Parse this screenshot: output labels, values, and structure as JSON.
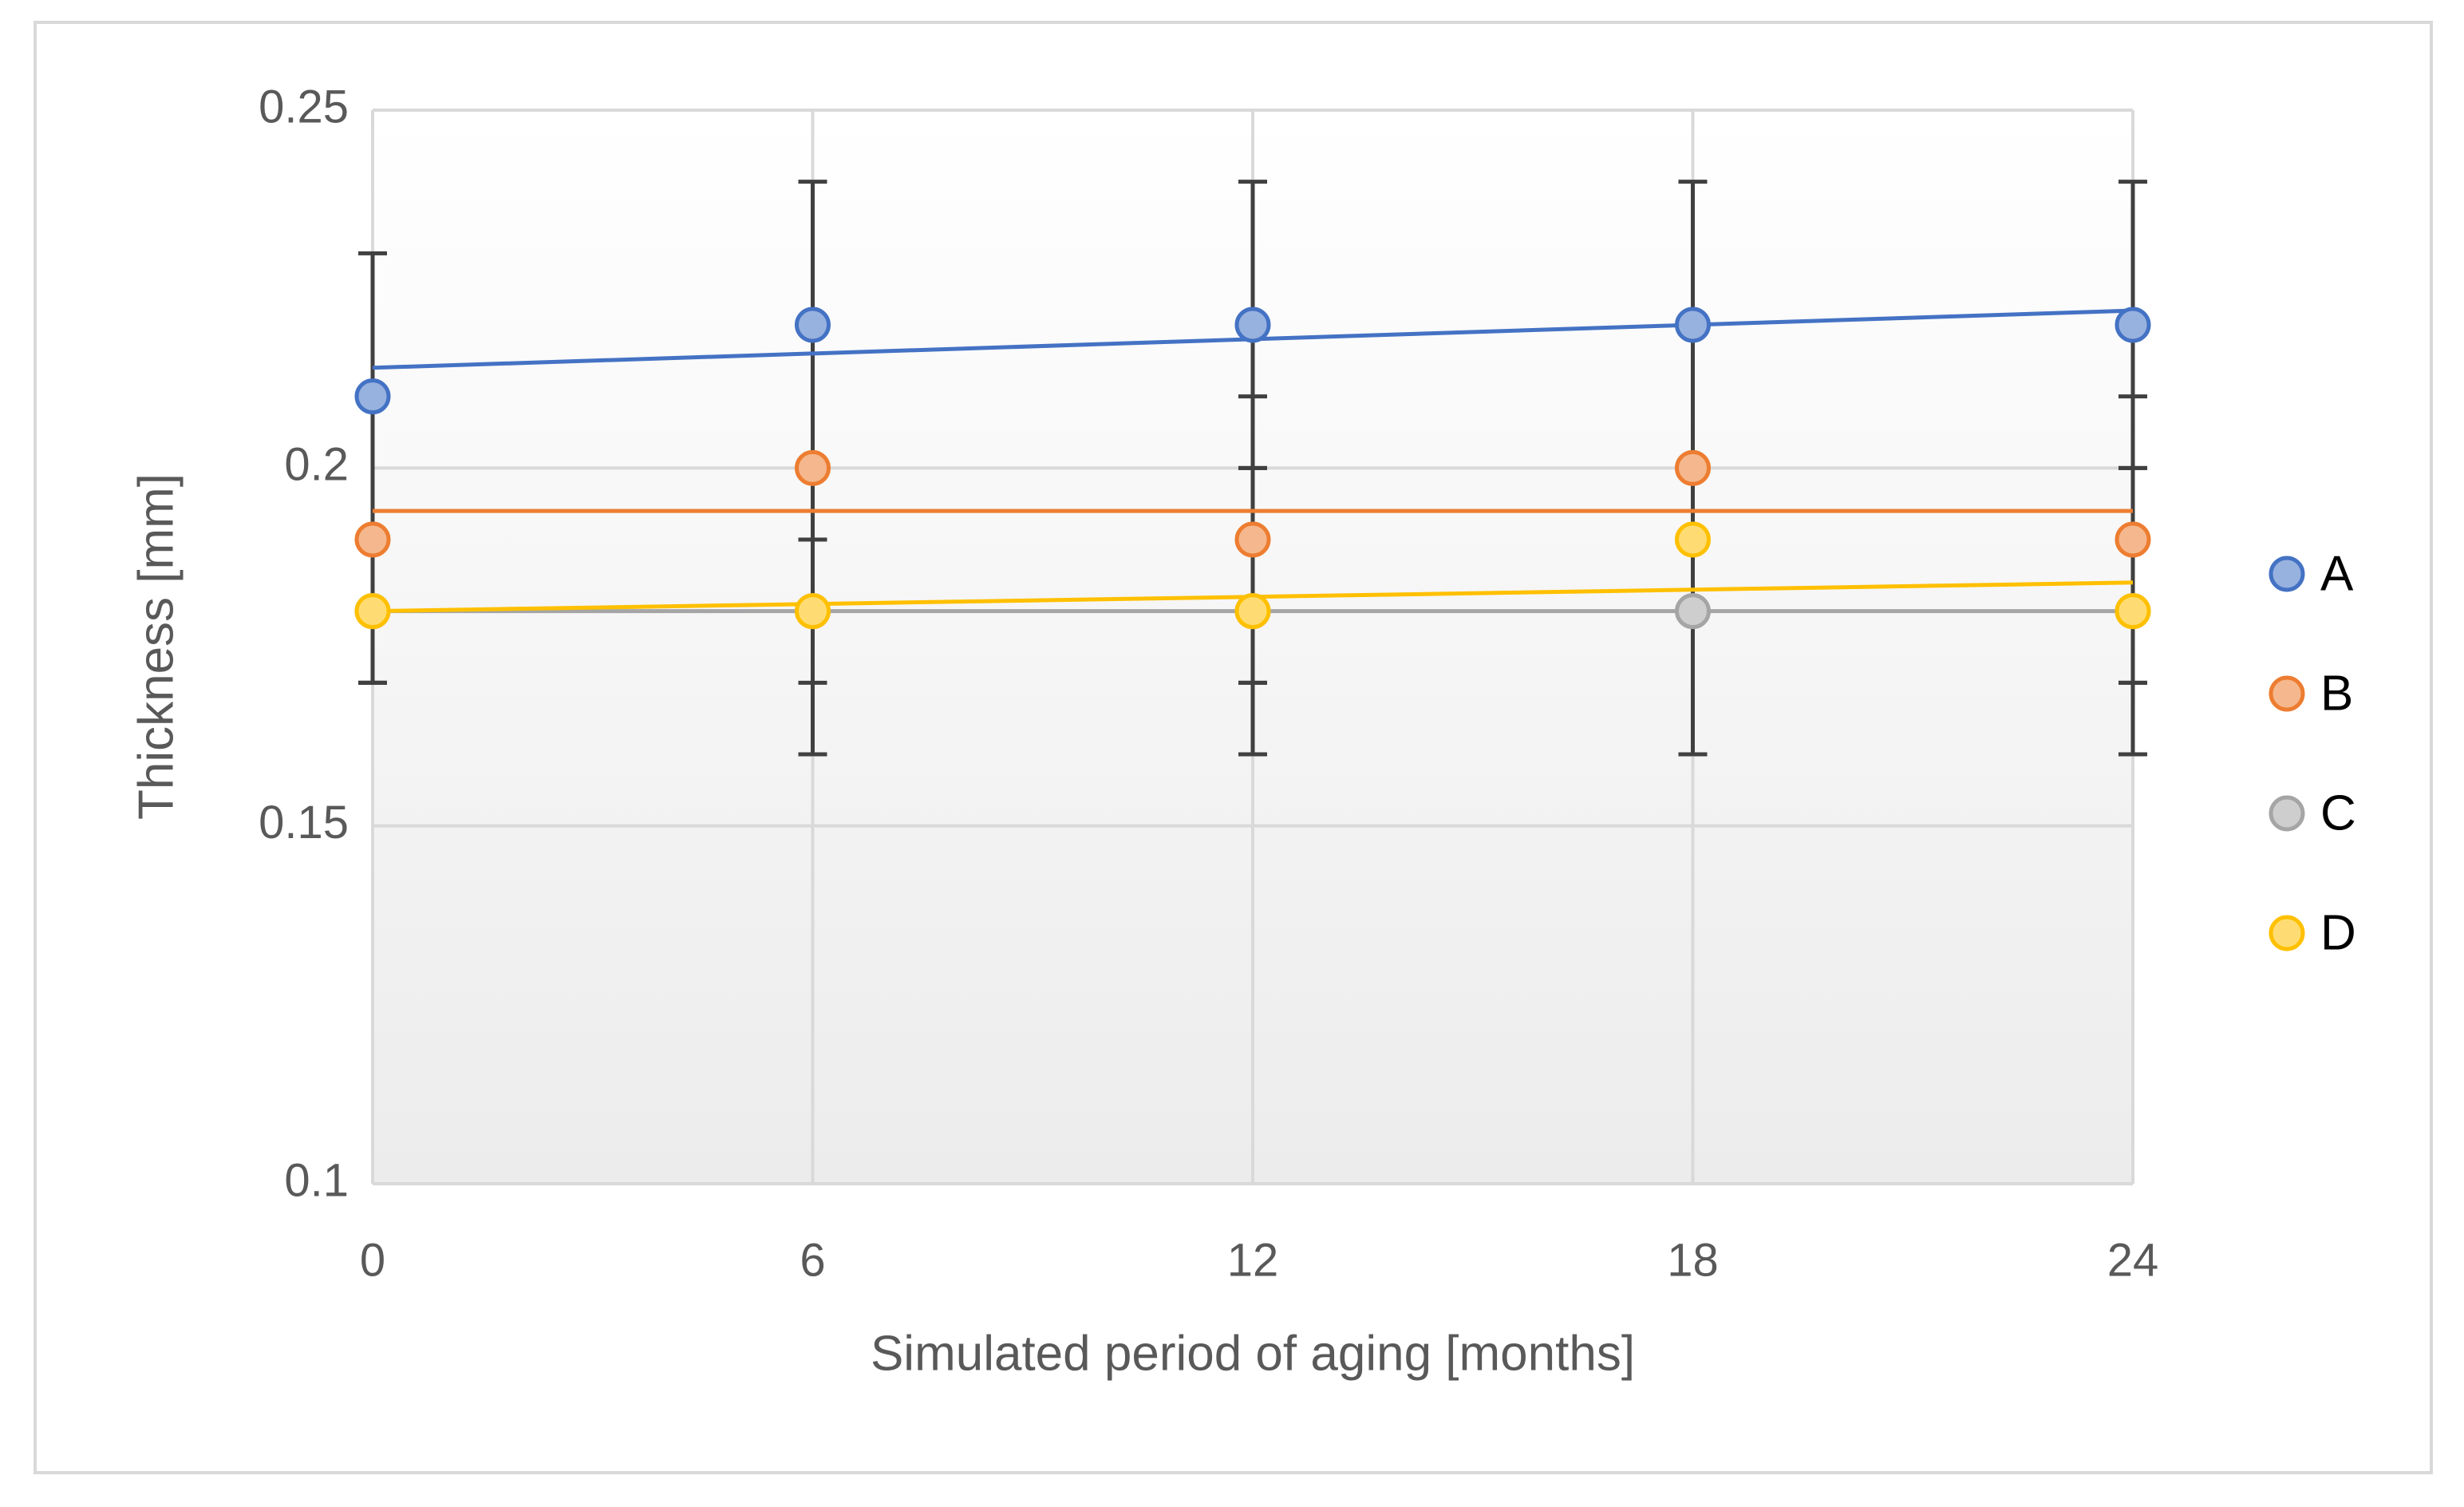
{
  "chart_data": {
    "type": "scatter",
    "x_label": "Simulated period of aging [months]",
    "y_label": "Thickness [mm]",
    "x": [
      0,
      6,
      12,
      18,
      24
    ],
    "xlim": [
      0,
      24
    ],
    "xticks": [
      0,
      6,
      12,
      18,
      24
    ],
    "ylim": [
      0.1,
      0.25
    ],
    "yticks": [
      0.1,
      0.15,
      0.2,
      0.25
    ],
    "grid": true,
    "trendline": true,
    "legend": "right",
    "series": [
      {
        "name": "A",
        "color": "#4472c4",
        "values": [
          0.21,
          0.22,
          0.22,
          0.22,
          0.22
        ],
        "errors": [
          0.02,
          0.02,
          0.02,
          0.02,
          0.02
        ]
      },
      {
        "name": "B",
        "color": "#ed7d31",
        "values": [
          0.19,
          0.2,
          0.19,
          0.2,
          0.19
        ],
        "errors": [
          0.02,
          0.02,
          0.02,
          0.02,
          0.02
        ]
      },
      {
        "name": "C",
        "color": "#a5a5a5",
        "values": [
          0.18,
          0.18,
          0.18,
          0.18,
          0.18
        ],
        "errors": [
          0.01,
          0.02,
          0.02,
          0.02,
          0.02
        ]
      },
      {
        "name": "D",
        "color": "#ffc000",
        "values": [
          0.18,
          0.18,
          0.18,
          0.19,
          0.18
        ],
        "errors": [
          0.01,
          0.01,
          0.01,
          0.01,
          0.01
        ]
      }
    ]
  }
}
